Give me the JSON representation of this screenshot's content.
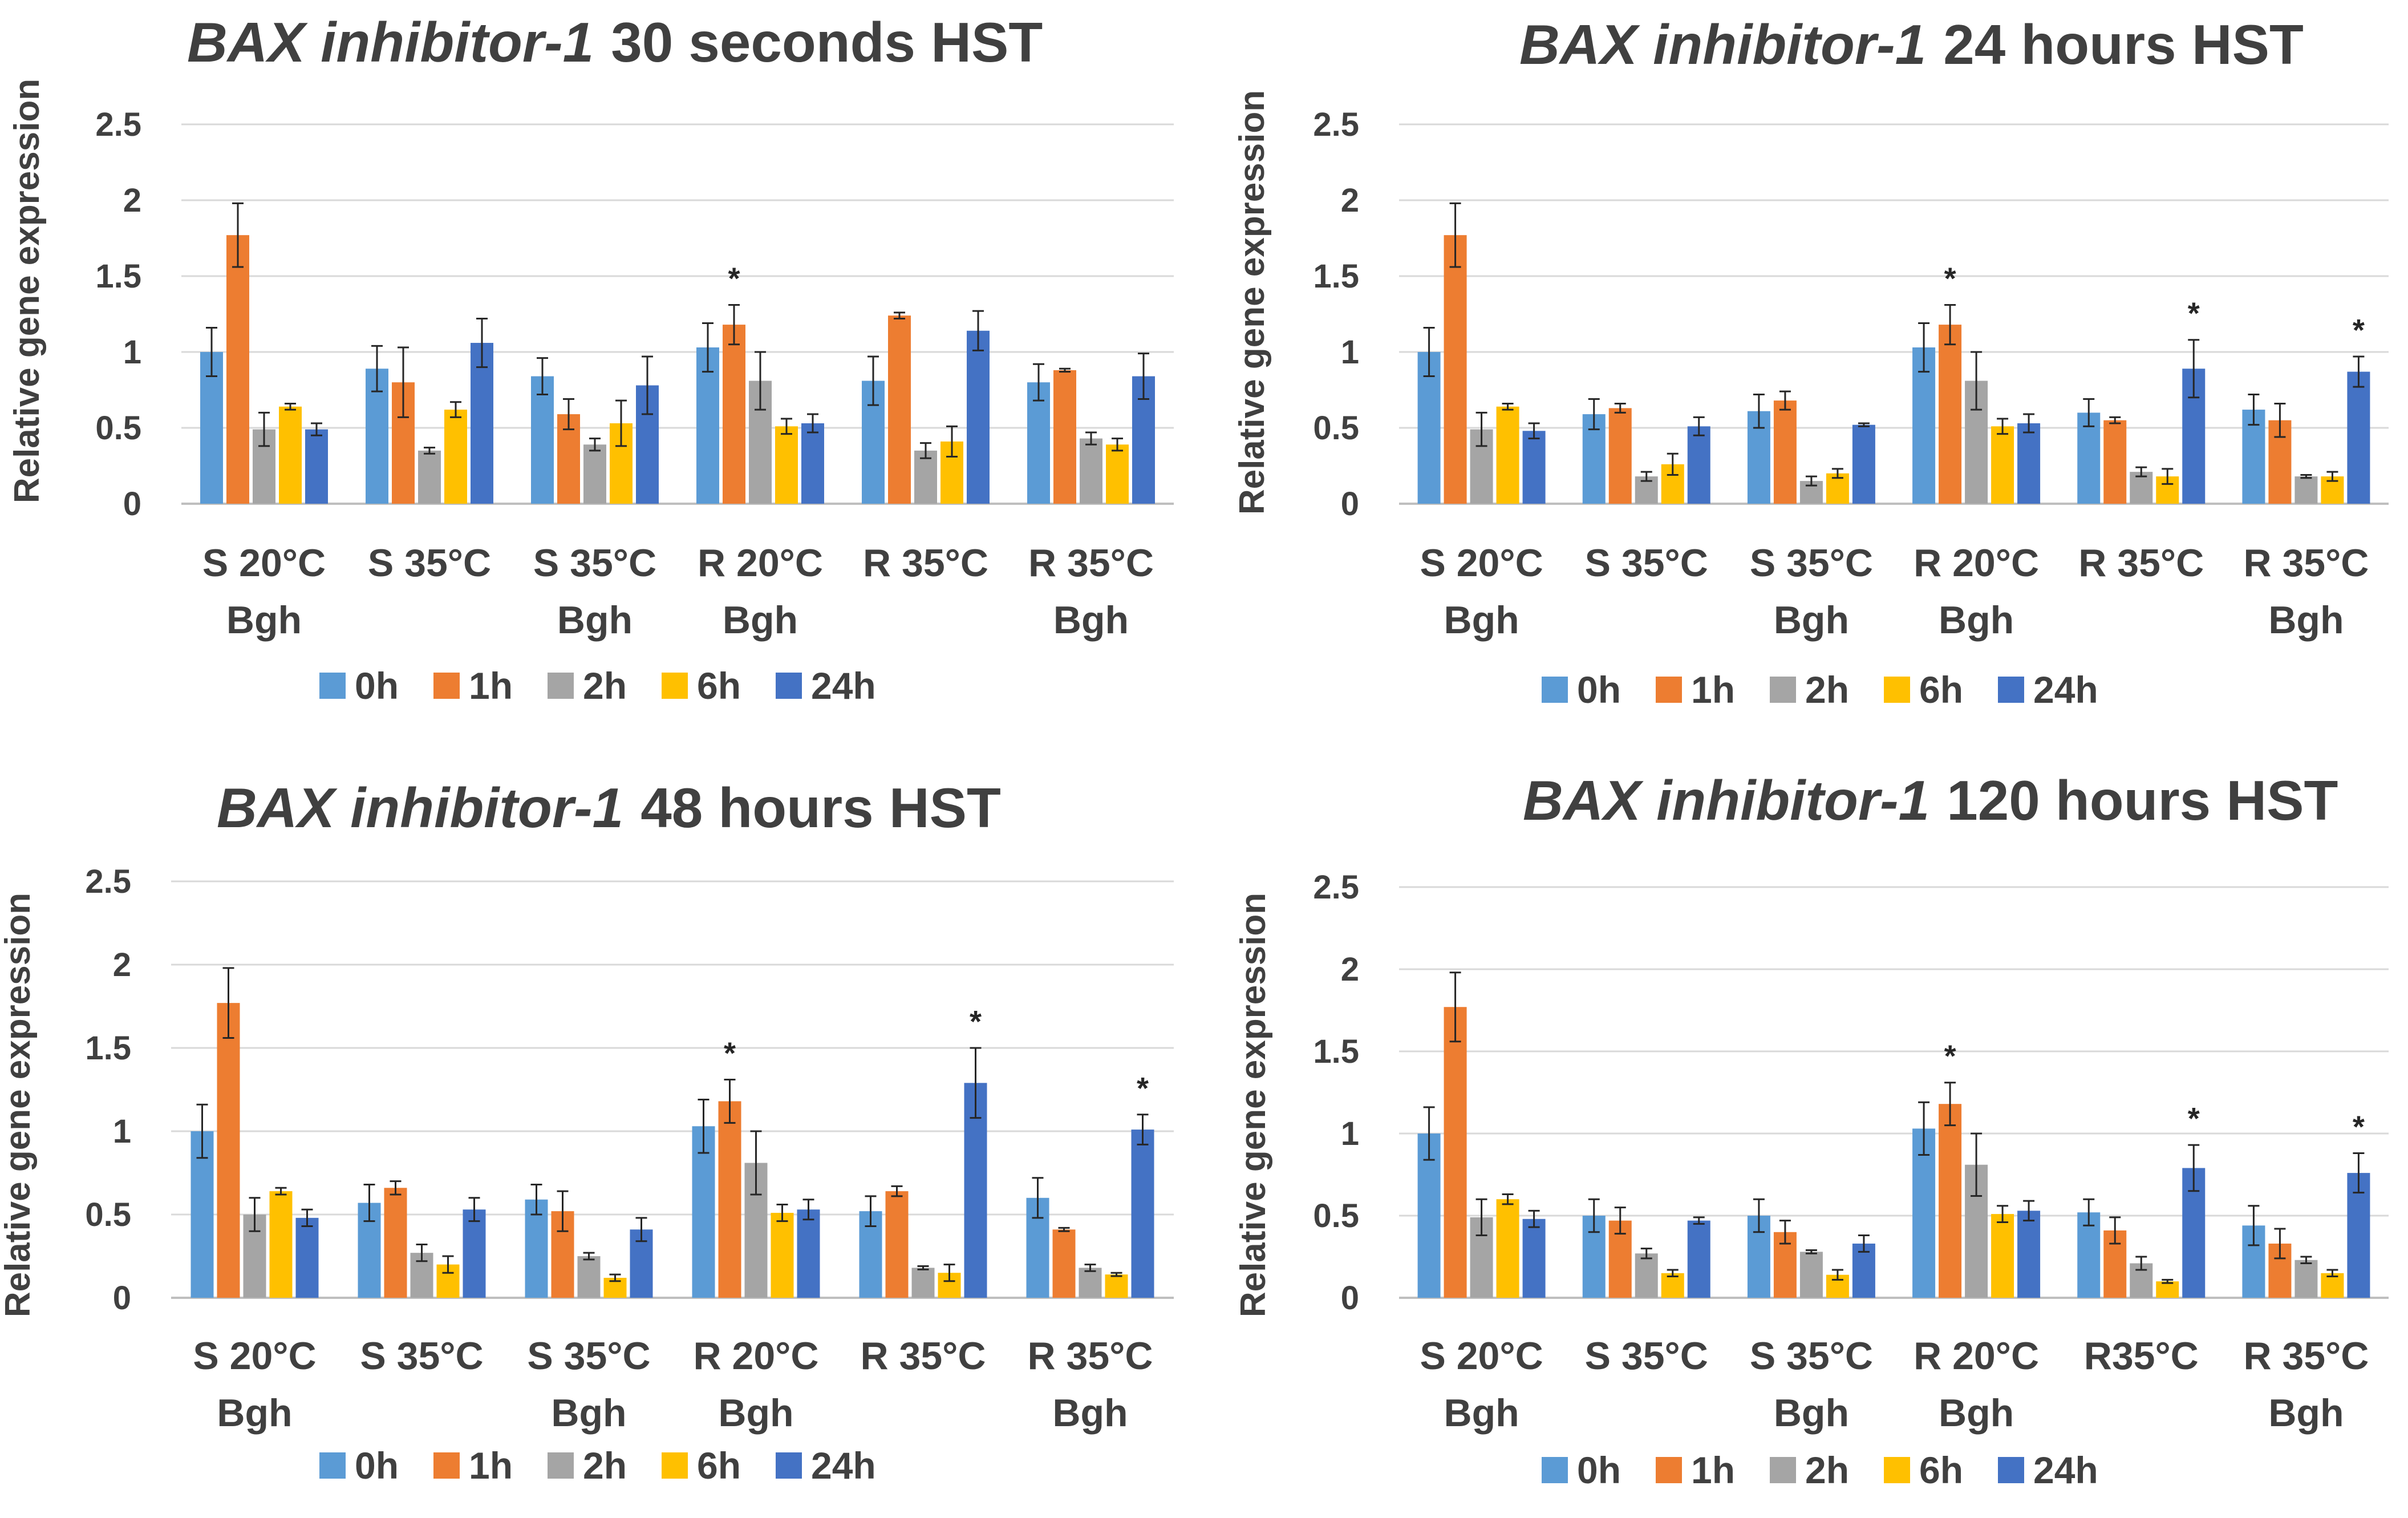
{
  "legend": {
    "series": [
      "0h",
      "1h",
      "2h",
      "6h",
      "24h"
    ],
    "colors": [
      "#5B9BD5",
      "#ED7D31",
      "#A5A5A5",
      "#FFC000",
      "#4472C4"
    ]
  },
  "chart_data": [
    {
      "type": "bar",
      "title_gene": "BAX inhibitor-1",
      "title_time": "30 seconds HST",
      "ylabel": "Relative gene expression",
      "xlabel": "",
      "ylim": [
        0,
        2.5
      ],
      "yticks": [
        "0",
        "0.5",
        "1",
        "1.5",
        "2",
        "2.5"
      ],
      "categories": [
        {
          "line1": "S 20°C",
          "line2": "Bgh"
        },
        {
          "line1": "S 35°C",
          "line2": ""
        },
        {
          "line1": "S 35°C",
          "line2": "Bgh"
        },
        {
          "line1": "R 20°C",
          "line2": "Bgh"
        },
        {
          "line1": "R 35°C",
          "line2": ""
        },
        {
          "line1": "R 35°C",
          "line2": "Bgh"
        }
      ],
      "series": [
        {
          "name": "0h",
          "values": [
            1.0,
            0.89,
            0.84,
            1.03,
            0.81,
            0.8
          ],
          "errors": [
            0.16,
            0.15,
            0.12,
            0.16,
            0.16,
            0.12
          ]
        },
        {
          "name": "1h",
          "values": [
            1.77,
            0.8,
            0.59,
            1.18,
            1.24,
            0.88
          ],
          "errors": [
            0.21,
            0.23,
            0.1,
            0.13,
            0.02,
            0.01
          ]
        },
        {
          "name": "2h",
          "values": [
            0.49,
            0.35,
            0.39,
            0.81,
            0.35,
            0.43
          ],
          "errors": [
            0.11,
            0.02,
            0.04,
            0.19,
            0.05,
            0.04
          ]
        },
        {
          "name": "6h",
          "values": [
            0.64,
            0.62,
            0.53,
            0.51,
            0.41,
            0.39
          ],
          "errors": [
            0.02,
            0.05,
            0.15,
            0.05,
            0.1,
            0.04
          ]
        },
        {
          "name": "24h",
          "values": [
            0.49,
            1.06,
            0.78,
            0.53,
            1.14,
            0.84
          ],
          "errors": [
            0.04,
            0.16,
            0.19,
            0.06,
            0.13,
            0.15
          ]
        }
      ],
      "significance": [
        {
          "category": 3,
          "series": 1,
          "label": "*"
        }
      ]
    },
    {
      "type": "bar",
      "title_gene": "BAX inhibitor-1",
      "title_time": "24 hours HST",
      "ylabel": "Relative gene expression",
      "xlabel": "",
      "ylim": [
        0,
        2.5
      ],
      "yticks": [
        "0",
        "0.5",
        "1",
        "1.5",
        "2",
        "2.5"
      ],
      "categories": [
        {
          "line1": "S 20°C",
          "line2": "Bgh"
        },
        {
          "line1": "S 35°C",
          "line2": ""
        },
        {
          "line1": "S 35°C",
          "line2": "Bgh"
        },
        {
          "line1": "R 20°C",
          "line2": "Bgh"
        },
        {
          "line1": "R 35°C",
          "line2": ""
        },
        {
          "line1": "R 35°C",
          "line2": "Bgh"
        }
      ],
      "series": [
        {
          "name": "0h",
          "values": [
            1.0,
            0.59,
            0.61,
            1.03,
            0.6,
            0.62
          ],
          "errors": [
            0.16,
            0.1,
            0.11,
            0.16,
            0.09,
            0.1
          ]
        },
        {
          "name": "1h",
          "values": [
            1.77,
            0.63,
            0.68,
            1.18,
            0.55,
            0.55
          ],
          "errors": [
            0.21,
            0.03,
            0.06,
            0.13,
            0.02,
            0.11
          ]
        },
        {
          "name": "2h",
          "values": [
            0.49,
            0.18,
            0.15,
            0.81,
            0.21,
            0.18
          ],
          "errors": [
            0.11,
            0.03,
            0.03,
            0.19,
            0.03,
            0.01
          ]
        },
        {
          "name": "6h",
          "values": [
            0.64,
            0.26,
            0.2,
            0.51,
            0.18,
            0.18
          ],
          "errors": [
            0.02,
            0.07,
            0.03,
            0.05,
            0.05,
            0.03
          ]
        },
        {
          "name": "24h",
          "values": [
            0.48,
            0.51,
            0.52,
            0.53,
            0.89,
            0.87
          ],
          "errors": [
            0.05,
            0.06,
            0.01,
            0.06,
            0.19,
            0.1
          ]
        }
      ],
      "significance": [
        {
          "category": 3,
          "series": 1,
          "label": "*"
        },
        {
          "category": 4,
          "series": 4,
          "label": "*"
        },
        {
          "category": 5,
          "series": 4,
          "label": "*"
        }
      ]
    },
    {
      "type": "bar",
      "title_gene": "BAX inhibitor-1",
      "title_time": "48 hours HST",
      "ylabel": "Relative gene expression",
      "xlabel": "",
      "ylim": [
        0,
        2.5
      ],
      "yticks": [
        "0",
        "0.5",
        "1",
        "1.5",
        "2",
        "2.5"
      ],
      "categories": [
        {
          "line1": "S 20°C",
          "line2": "Bgh"
        },
        {
          "line1": "S 35°C",
          "line2": ""
        },
        {
          "line1": "S 35°C",
          "line2": "Bgh"
        },
        {
          "line1": "R 20°C",
          "line2": "Bgh"
        },
        {
          "line1": "R 35°C",
          "line2": ""
        },
        {
          "line1": "R 35°C",
          "line2": "Bgh"
        }
      ],
      "series": [
        {
          "name": "0h",
          "values": [
            1.0,
            0.57,
            0.59,
            1.03,
            0.52,
            0.6
          ],
          "errors": [
            0.16,
            0.11,
            0.09,
            0.16,
            0.09,
            0.12
          ]
        },
        {
          "name": "1h",
          "values": [
            1.77,
            0.66,
            0.52,
            1.18,
            0.64,
            0.41
          ],
          "errors": [
            0.21,
            0.04,
            0.12,
            0.13,
            0.03,
            0.01
          ]
        },
        {
          "name": "2h",
          "values": [
            0.5,
            0.27,
            0.25,
            0.81,
            0.18,
            0.18
          ],
          "errors": [
            0.1,
            0.05,
            0.02,
            0.19,
            0.01,
            0.02
          ]
        },
        {
          "name": "6h",
          "values": [
            0.64,
            0.2,
            0.12,
            0.51,
            0.15,
            0.14
          ],
          "errors": [
            0.02,
            0.05,
            0.02,
            0.05,
            0.05,
            0.01
          ]
        },
        {
          "name": "24h",
          "values": [
            0.48,
            0.53,
            0.41,
            0.53,
            1.29,
            1.01
          ],
          "errors": [
            0.05,
            0.07,
            0.07,
            0.06,
            0.21,
            0.09
          ]
        }
      ],
      "significance": [
        {
          "category": 3,
          "series": 1,
          "label": "*"
        },
        {
          "category": 4,
          "series": 4,
          "label": "*"
        },
        {
          "category": 5,
          "series": 4,
          "label": "*"
        }
      ]
    },
    {
      "type": "bar",
      "title_gene": "BAX inhibitor-1",
      "title_time": "120 hours HST",
      "ylabel": "Relative gene expression",
      "xlabel": "",
      "ylim": [
        0,
        2.5
      ],
      "yticks": [
        "0",
        "0.5",
        "1",
        "1.5",
        "2",
        "2.5"
      ],
      "categories": [
        {
          "line1": "S 20°C",
          "line2": "Bgh"
        },
        {
          "line1": "S 35°C",
          "line2": ""
        },
        {
          "line1": "S 35°C",
          "line2": "Bgh"
        },
        {
          "line1": "R 20°C",
          "line2": "Bgh"
        },
        {
          "line1": "R35°C",
          "line2": ""
        },
        {
          "line1": "R 35°C",
          "line2": "Bgh"
        }
      ],
      "series": [
        {
          "name": "0h",
          "values": [
            1.0,
            0.5,
            0.5,
            1.03,
            0.52,
            0.44
          ],
          "errors": [
            0.16,
            0.1,
            0.1,
            0.16,
            0.08,
            0.12
          ]
        },
        {
          "name": "1h",
          "values": [
            1.77,
            0.47,
            0.4,
            1.18,
            0.41,
            0.33
          ],
          "errors": [
            0.21,
            0.08,
            0.07,
            0.13,
            0.08,
            0.09
          ]
        },
        {
          "name": "2h",
          "values": [
            0.49,
            0.27,
            0.28,
            0.81,
            0.21,
            0.23
          ],
          "errors": [
            0.11,
            0.03,
            0.01,
            0.19,
            0.04,
            0.02
          ]
        },
        {
          "name": "6h",
          "values": [
            0.6,
            0.15,
            0.14,
            0.51,
            0.1,
            0.15
          ],
          "errors": [
            0.03,
            0.02,
            0.03,
            0.05,
            0.01,
            0.02
          ]
        },
        {
          "name": "24h",
          "values": [
            0.48,
            0.47,
            0.33,
            0.53,
            0.79,
            0.76
          ],
          "errors": [
            0.05,
            0.02,
            0.05,
            0.06,
            0.14,
            0.12
          ]
        }
      ],
      "significance": [
        {
          "category": 3,
          "series": 1,
          "label": "*"
        },
        {
          "category": 4,
          "series": 4,
          "label": "*"
        },
        {
          "category": 5,
          "series": 4,
          "label": "*"
        }
      ]
    }
  ]
}
